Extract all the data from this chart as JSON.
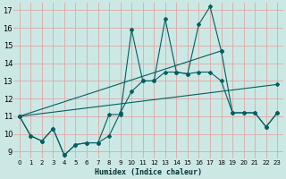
{
  "title": "",
  "xlabel": "Humidex (Indice chaleur)",
  "bg_color": "#cce8e4",
  "grid_color": "#dda8a8",
  "line_color": "#006060",
  "xlim": [
    -0.5,
    23.5
  ],
  "ylim": [
    8.6,
    17.4
  ],
  "xticks": [
    0,
    1,
    2,
    3,
    4,
    5,
    6,
    7,
    8,
    9,
    10,
    11,
    12,
    13,
    14,
    15,
    16,
    17,
    18,
    19,
    20,
    21,
    22,
    23
  ],
  "yticks": [
    9,
    10,
    11,
    12,
    13,
    14,
    15,
    16,
    17
  ],
  "lines": [
    {
      "x": [
        0,
        1,
        2,
        3,
        4,
        5,
        6,
        7,
        8,
        9,
        10,
        11,
        12,
        13,
        14,
        15,
        16,
        17,
        18,
        19,
        20,
        21,
        22,
        23
      ],
      "y": [
        11,
        9.9,
        9.6,
        10.3,
        8.8,
        9.4,
        9.5,
        9.5,
        11.1,
        11.1,
        15.9,
        13.0,
        13.0,
        16.5,
        13.5,
        13.4,
        16.2,
        17.2,
        14.7,
        11.2,
        11.2,
        11.2,
        10.4,
        11.2
      ]
    },
    {
      "x": [
        0,
        1,
        2,
        3,
        4,
        5,
        6,
        7,
        8,
        9,
        10,
        11,
        12,
        13,
        14,
        15,
        16,
        17,
        18,
        19,
        20,
        21,
        22,
        23
      ],
      "y": [
        11,
        9.9,
        9.6,
        10.3,
        8.8,
        9.4,
        9.5,
        9.5,
        9.9,
        11.2,
        12.4,
        13.0,
        13.0,
        13.5,
        13.5,
        13.4,
        13.5,
        13.5,
        13.0,
        11.2,
        11.2,
        11.2,
        10.4,
        11.2
      ]
    },
    {
      "x": [
        0,
        23
      ],
      "y": [
        11.0,
        12.8
      ]
    },
    {
      "x": [
        0,
        18
      ],
      "y": [
        11.0,
        14.7
      ]
    }
  ]
}
